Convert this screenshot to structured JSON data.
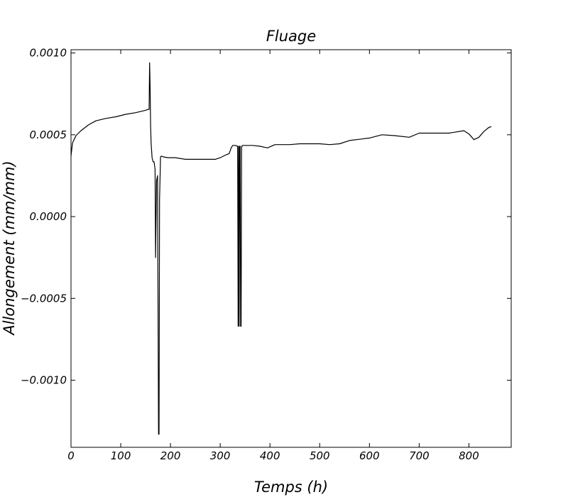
{
  "chart_data": {
    "type": "line",
    "title": "Fluage",
    "xlabel": "Temps (h)",
    "ylabel": "Allongement (mm/mm)",
    "xlim": [
      0,
      885
    ],
    "ylim": [
      -0.00141,
      0.00102
    ],
    "grid": false,
    "x_ticks": [
      0,
      100,
      200,
      300,
      400,
      500,
      600,
      700,
      800
    ],
    "x_tick_labels": [
      "0",
      "100",
      "200",
      "300",
      "400",
      "500",
      "600",
      "700",
      "800"
    ],
    "y_ticks": [
      0.001,
      0.0005,
      0.0,
      -0.0005,
      -0.001
    ],
    "y_tick_labels": [
      "0.0010",
      "0.0005",
      "0.0000",
      "−0.0005",
      "−0.0010"
    ],
    "series": [
      {
        "x": [
          0,
          3,
          10,
          20,
          35,
          50,
          70,
          90,
          110,
          130,
          150,
          155,
          157,
          158,
          159,
          160,
          161,
          163,
          165,
          167,
          169,
          170,
          172,
          174,
          176,
          177,
          178,
          180,
          182,
          185,
          195,
          210,
          230,
          250,
          270,
          290,
          300,
          310,
          318,
          322,
          325,
          330,
          335,
          336,
          337,
          338,
          339,
          340,
          341,
          342,
          343,
          344,
          345,
          350,
          365,
          380,
          395,
          410,
          440,
          460,
          500,
          520,
          540,
          560,
          600,
          625,
          650,
          680,
          700,
          720,
          760,
          790,
          800,
          810,
          820,
          830,
          840,
          845
        ],
        "y": [
          0.00037,
          0.00045,
          0.000495,
          0.000525,
          0.00056,
          0.000585,
          0.0006,
          0.00061,
          0.000625,
          0.000635,
          0.00065,
          0.000655,
          0.000655,
          0.00094,
          0.0008,
          0.00056,
          0.00045,
          0.00036,
          0.000335,
          0.000335,
          0.00029,
          -0.00025,
          0.00022,
          0.00025,
          -0.00133,
          -0.00133,
          0.0001,
          0.000365,
          0.00037,
          0.000365,
          0.00036,
          0.00036,
          0.00035,
          0.00035,
          0.00035,
          0.00035,
          0.00036,
          0.000375,
          0.000385,
          0.00042,
          0.000435,
          0.000435,
          0.00043,
          -0.00067,
          0.00043,
          -0.00067,
          0.00043,
          0.00043,
          -0.00067,
          -0.00067,
          0.00043,
          0.00043,
          0.000435,
          0.000435,
          0.000435,
          0.00043,
          0.00042,
          0.00044,
          0.00044,
          0.000445,
          0.000445,
          0.00044,
          0.000445,
          0.000465,
          0.00048,
          0.0005,
          0.000495,
          0.000485,
          0.00051,
          0.00051,
          0.00051,
          0.000525,
          0.000505,
          0.00047,
          0.000485,
          0.00052,
          0.000545,
          0.00055
        ]
      }
    ]
  }
}
